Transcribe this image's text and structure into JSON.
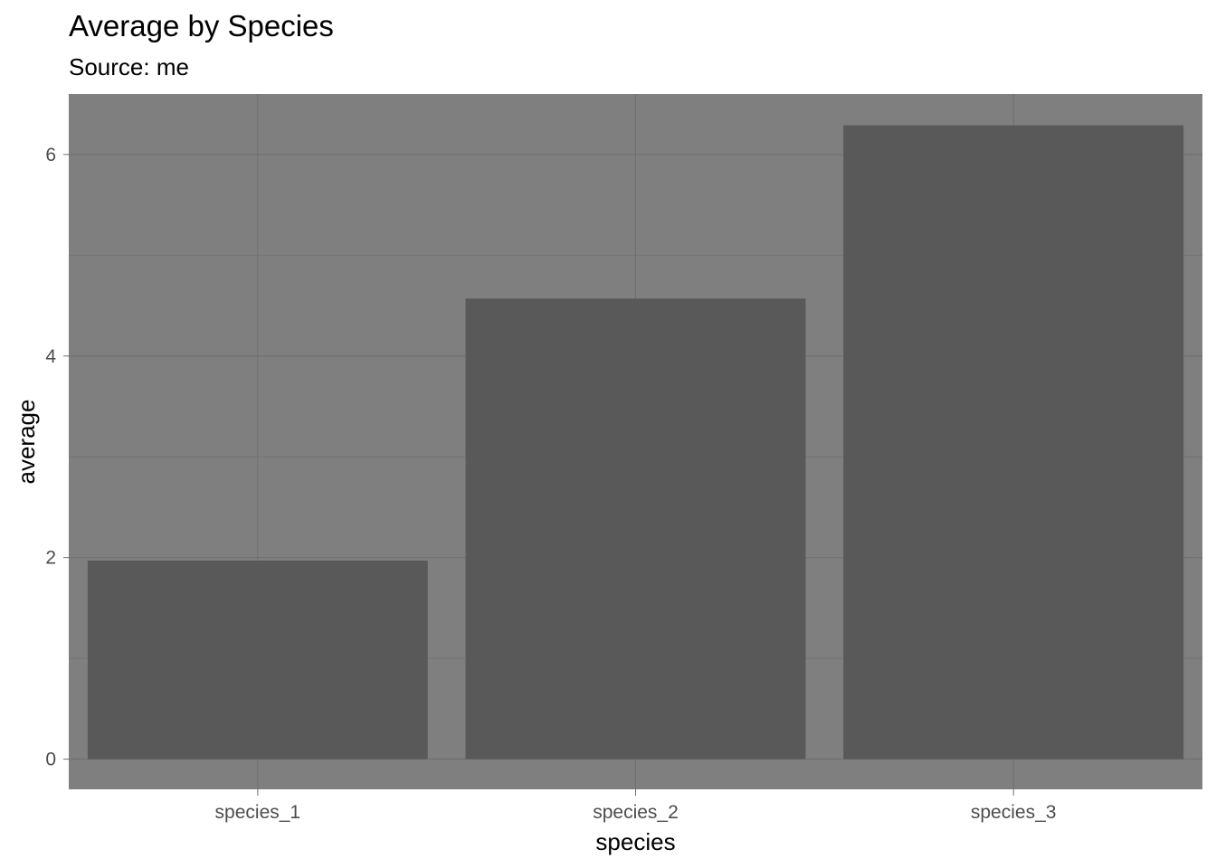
{
  "chart_data": {
    "type": "bar",
    "title": "Average by Species",
    "subtitle": "Source: me",
    "xlabel": "species",
    "ylabel": "average",
    "categories": [
      "species_1",
      "species_2",
      "species_3"
    ],
    "values": [
      1.97,
      4.57,
      6.29
    ],
    "ylim": [
      -0.3,
      6.6
    ],
    "yticks": [
      0,
      2,
      4,
      6
    ],
    "grid": true,
    "colors": {
      "panel_background": "#7f7f7f",
      "bar_fill": "#595959",
      "grid_major": "#6e6e6e",
      "grid_minor": "#747474",
      "tick_text": "#4d4d4d",
      "axis_title": "#000000"
    }
  }
}
